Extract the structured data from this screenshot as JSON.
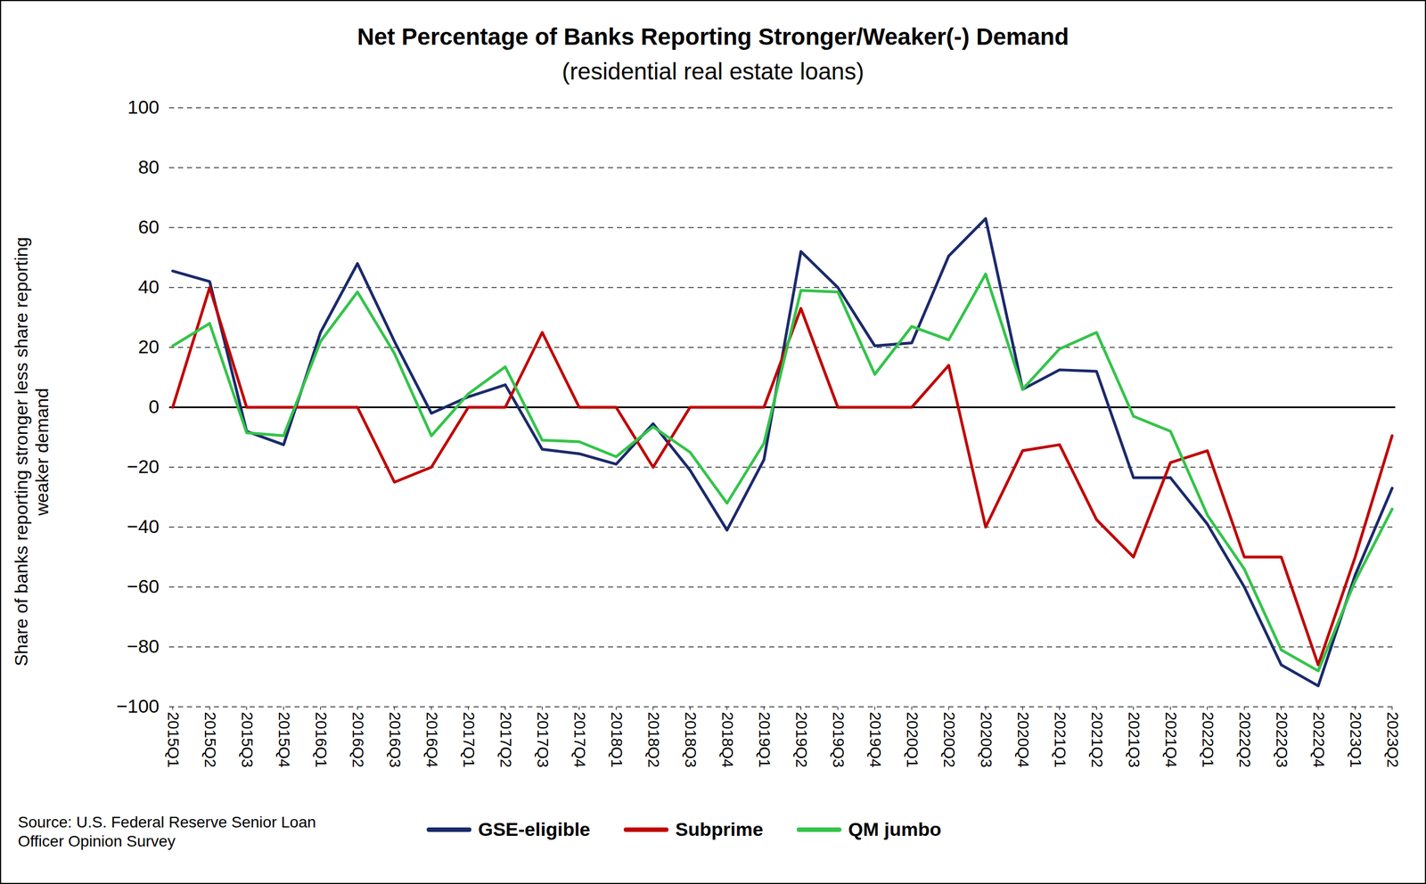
{
  "chart_data": {
    "type": "line",
    "title": "Net Percentage of Banks Reporting Stronger/Weaker(-) Demand",
    "subtitle": "(residential real estate loans)",
    "y_label": "Share of banks reporting stronger less share reporting weaker demand",
    "source": "Source: U.S. Federal Reserve Senior Loan Officer Opinion Survey",
    "categories": [
      "2015Q1",
      "2015Q2",
      "2015Q3",
      "2015Q4",
      "2016Q1",
      "2016Q2",
      "2016Q3",
      "2016Q4",
      "2017Q1",
      "2017Q2",
      "2017Q3",
      "2017Q4",
      "2018Q1",
      "2018Q2",
      "2018Q3",
      "2018Q4",
      "2019Q1",
      "2019Q2",
      "2019Q3",
      "2019Q4",
      "2020Q1",
      "2020Q2",
      "2020Q3",
      "2020Q4",
      "2021Q1",
      "2021Q2",
      "2021Q3",
      "2021Q4",
      "2022Q1",
      "2022Q2",
      "2022Q3",
      "2022Q4",
      "2023Q1",
      "2023Q2"
    ],
    "series": [
      {
        "name": "GSE-eligible",
        "color": "#1b2a6b",
        "values": [
          45.5,
          42,
          -8,
          -12.5,
          25,
          48,
          22,
          -2,
          3.5,
          7.5,
          -14,
          -15.5,
          -19,
          -5.5,
          -21,
          -41,
          -17.5,
          52,
          40,
          20.5,
          21.5,
          50.5,
          63,
          6,
          12.5,
          12,
          -23.5,
          -23.5,
          -39,
          -60,
          -86,
          -93,
          -56,
          -27
        ]
      },
      {
        "name": "Subprime",
        "color": "#c00000",
        "values": [
          0,
          40,
          0,
          0,
          0,
          0,
          -25,
          -20,
          0,
          0,
          25,
          0,
          0,
          -20,
          0,
          0,
          0,
          33,
          0,
          0,
          0,
          14,
          -40,
          -14.5,
          -12.5,
          -37.5,
          -50,
          -18.5,
          -14.5,
          -50,
          -50,
          -86,
          -50,
          -9.5
        ]
      },
      {
        "name": "QM jumbo",
        "color": "#33c44a",
        "values": [
          20.5,
          28,
          -8.5,
          -9.5,
          22,
          38.5,
          18,
          -9.5,
          4.5,
          13.5,
          -11,
          -11.5,
          -16.5,
          -6.5,
          -15,
          -32,
          -12,
          39,
          38.5,
          11,
          27,
          22.5,
          44.5,
          6,
          19.5,
          25,
          -3,
          -8,
          -36,
          -54,
          -81,
          -88,
          -58,
          -34
        ]
      }
    ],
    "ylim": [
      -100,
      100
    ],
    "yticks": [
      -100,
      -80,
      -60,
      -40,
      -20,
      0,
      20,
      40,
      60,
      80,
      100
    ],
    "grid": true,
    "legend": "bottom"
  }
}
